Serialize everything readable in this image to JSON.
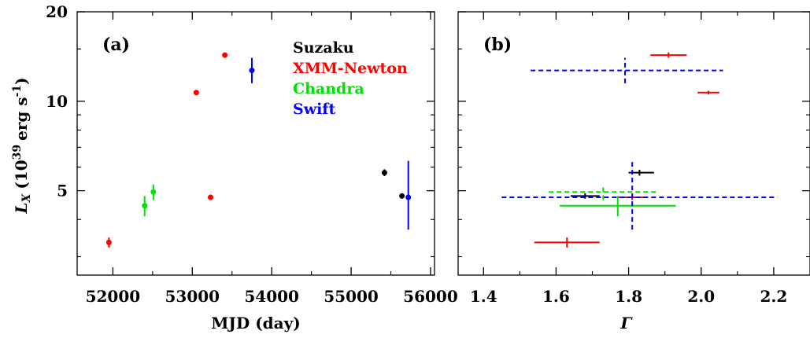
{
  "colors": {
    "suzaku": "#000000",
    "xmm": "#ff0000",
    "chandra": "#00e000",
    "swift": "#0000ff"
  },
  "chart_data": [
    {
      "type": "scatter",
      "panel_label": "(a)",
      "xlabel": "MJD (day)",
      "ylabel": "L",
      "ylabel_sub": "X",
      "ylabel_units": "(10",
      "ylabel_exp": "39",
      "ylabel_units2": "erg s",
      "ylabel_exp2": "-1",
      "ylabel_close": ")",
      "xlim": [
        51550,
        56050
      ],
      "ylim": [
        2.6,
        20
      ],
      "yscale": "log",
      "xticks": [
        52000,
        53000,
        54000,
        55000,
        56000
      ],
      "xtick_labels": [
        "52000",
        "53000",
        "54000",
        "55000",
        "56000"
      ],
      "yticks": [
        5,
        10,
        20
      ],
      "ytick_labels": [
        "5",
        "10",
        "20"
      ],
      "legend_position": "top-right",
      "series": [
        {
          "name": "Suzaku",
          "color_key": "suzaku",
          "points": [
            {
              "x": 55420,
              "y": 5.75,
              "ylo": 5.6,
              "yhi": 5.9
            },
            {
              "x": 55640,
              "y": 4.8,
              "ylo": 4.7,
              "yhi": 4.9
            }
          ]
        },
        {
          "name": "XMM-Newton",
          "color_key": "xmm",
          "points": [
            {
              "x": 51950,
              "y": 3.35,
              "ylo": 3.22,
              "yhi": 3.48
            },
            {
              "x": 53050,
              "y": 10.7,
              "ylo": 10.5,
              "yhi": 10.9
            },
            {
              "x": 53230,
              "y": 4.75,
              "ylo": 4.65,
              "yhi": 4.85
            },
            {
              "x": 53410,
              "y": 14.3,
              "ylo": 14.0,
              "yhi": 14.6
            }
          ]
        },
        {
          "name": "Chandra",
          "color_key": "chandra",
          "points": [
            {
              "x": 52400,
              "y": 4.45,
              "ylo": 4.1,
              "yhi": 4.8
            },
            {
              "x": 52510,
              "y": 4.95,
              "ylo": 4.65,
              "yhi": 5.25
            }
          ]
        },
        {
          "name": "Swift",
          "color_key": "swift",
          "points": [
            {
              "x": 53750,
              "y": 12.7,
              "ylo": 11.5,
              "yhi": 14.0
            },
            {
              "x": 55720,
              "y": 4.75,
              "ylo": 3.7,
              "yhi": 6.3
            }
          ]
        }
      ]
    },
    {
      "type": "scatter",
      "panel_label": "(b)",
      "xlabel": "Γ",
      "xlim": [
        1.33,
        2.3
      ],
      "ylim": [
        2.6,
        20
      ],
      "yscale": "log",
      "xticks": [
        1.4,
        1.6,
        1.8,
        2.0,
        2.2
      ],
      "xtick_labels": [
        "1.4",
        "1.6",
        "1.8",
        "2.0",
        "2.2"
      ],
      "yticks": [
        5,
        10,
        20
      ],
      "series": [
        {
          "name": "Suzaku",
          "color_key": "suzaku",
          "points": [
            {
              "x": 1.83,
              "xlo": 1.8,
              "xhi": 1.87,
              "y": 5.75,
              "ylo": 5.62,
              "yhi": 5.88,
              "dash": false
            },
            {
              "x": 1.68,
              "xlo": 1.64,
              "xhi": 1.72,
              "y": 4.8,
              "ylo": 4.7,
              "yhi": 4.9,
              "dash": false
            }
          ]
        },
        {
          "name": "XMM-Newton",
          "color_key": "xmm",
          "points": [
            {
              "x": 1.63,
              "xlo": 1.54,
              "xhi": 1.72,
              "y": 3.35,
              "ylo": 3.22,
              "yhi": 3.48,
              "dash": false
            },
            {
              "x": 2.02,
              "xlo": 1.99,
              "xhi": 2.05,
              "y": 10.7,
              "ylo": 10.55,
              "yhi": 10.85,
              "dash": false
            },
            {
              "x": 1.81,
              "xlo": 1.77,
              "xhi": 1.85,
              "y": 4.75,
              "ylo": 4.65,
              "yhi": 4.85,
              "dash": false
            },
            {
              "x": 1.91,
              "xlo": 1.86,
              "xhi": 1.96,
              "y": 14.3,
              "ylo": 14.0,
              "yhi": 14.6,
              "dash": false
            }
          ]
        },
        {
          "name": "Chandra",
          "color_key": "chandra",
          "points": [
            {
              "x": 1.77,
              "xlo": 1.61,
              "xhi": 1.93,
              "y": 4.45,
              "ylo": 4.1,
              "yhi": 4.8,
              "dash": false
            },
            {
              "x": 1.73,
              "xlo": 1.58,
              "xhi": 1.88,
              "y": 4.95,
              "ylo": 4.65,
              "yhi": 5.25,
              "dash": true
            }
          ]
        },
        {
          "name": "Swift",
          "color_key": "swift",
          "points": [
            {
              "x": 1.79,
              "xlo": 1.53,
              "xhi": 2.06,
              "y": 12.7,
              "ylo": 11.5,
              "yhi": 14.0,
              "dash": true
            },
            {
              "x": 1.81,
              "xlo": 1.45,
              "xhi": 2.21,
              "y": 4.75,
              "ylo": 3.7,
              "yhi": 6.3,
              "dash": true
            }
          ]
        }
      ]
    }
  ]
}
